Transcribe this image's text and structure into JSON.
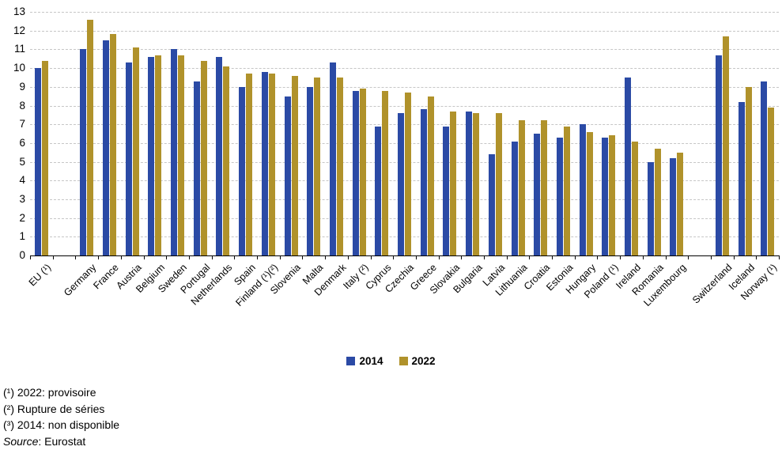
{
  "chart_data": {
    "type": "bar",
    "title": "",
    "xlabel": "",
    "ylabel": "",
    "ylim": [
      0,
      13
    ],
    "ytick_step": 1,
    "grid": "horizontal-dashed",
    "legend_position": "bottom-center",
    "categories": [
      "EU (¹)",
      null,
      "Germany",
      "France",
      "Austria",
      "Belgium",
      "Sweden",
      "Portugal",
      "Netherlands",
      "Spain",
      "Finland (¹)(²)",
      "Slovenia",
      "Malta",
      "Denmark",
      "Italy (²)",
      "Cyprus",
      "Czechia",
      "Greece",
      "Slovakia",
      "Bulgaria",
      "Latvia",
      "Lithuania",
      "Croatia",
      "Estonia",
      "Hungary",
      "Poland (¹)",
      "Ireland",
      "Romania",
      "Luxembourg",
      null,
      "Switzerland",
      "Iceland",
      "Norway (¹)"
    ],
    "series": [
      {
        "name": "2014",
        "color": "#2B4AA5",
        "values": [
          10.0,
          null,
          11.0,
          11.5,
          10.3,
          10.6,
          11.0,
          9.3,
          10.6,
          9.0,
          9.8,
          8.5,
          9.0,
          10.3,
          8.8,
          6.9,
          7.6,
          7.8,
          6.9,
          7.7,
          5.4,
          6.1,
          6.5,
          6.3,
          7.0,
          6.3,
          9.5,
          5.0,
          5.2,
          null,
          10.7,
          8.2,
          9.3
        ]
      },
      {
        "name": "2022",
        "color": "#B0922B",
        "values": [
          10.4,
          null,
          12.6,
          11.8,
          11.1,
          10.7,
          10.7,
          10.4,
          10.1,
          9.7,
          9.7,
          9.6,
          9.5,
          9.5,
          8.9,
          8.8,
          8.7,
          8.5,
          7.7,
          7.6,
          7.6,
          7.2,
          7.2,
          6.9,
          6.6,
          6.4,
          6.1,
          5.7,
          5.5,
          null,
          11.7,
          9.0,
          7.9
        ]
      }
    ]
  },
  "footnotes": {
    "line1": "(¹) 2022: provisoire",
    "line2": "(²) Rupture de séries",
    "line3": "(³) 2014: non disponible",
    "source_label": "Source",
    "source_text": ": Eurostat"
  }
}
